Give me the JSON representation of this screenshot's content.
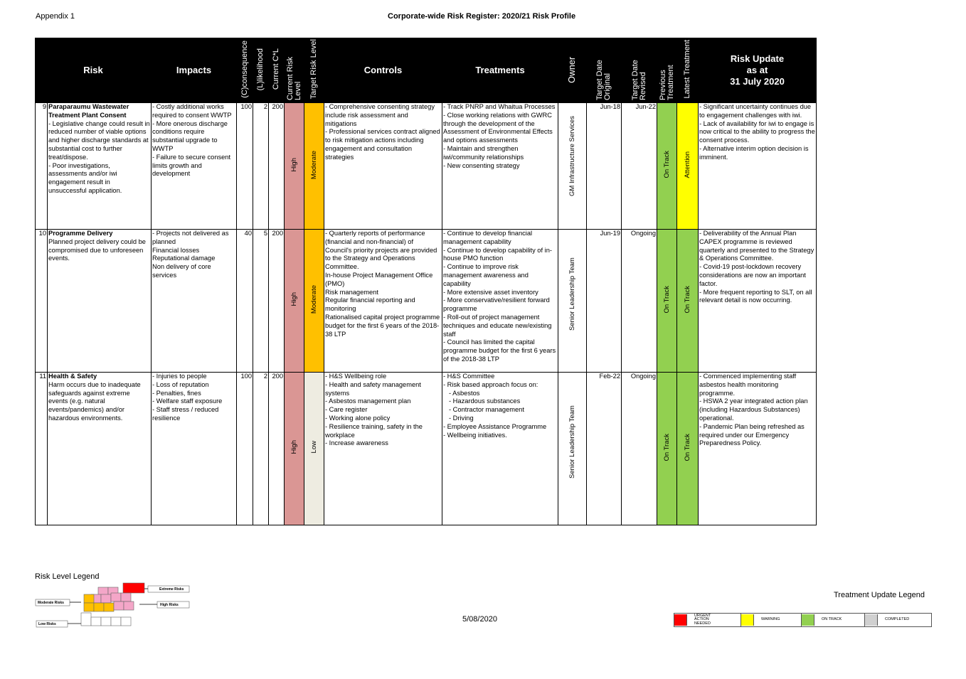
{
  "header": {
    "appendix": "Appendix 1",
    "title": "Corporate-wide Risk Register: 2020/21 Risk Profile"
  },
  "table": {
    "columns": [
      "Risk",
      "Impacts",
      "(C)consequence",
      "(L)likelihood",
      "Current C*L",
      "Current Risk Level",
      "Target Risk Level",
      "Controls",
      "Treatments",
      "Owner",
      "Target Date Original",
      "Target Date Revised",
      "Previous Treatment",
      "Latest Treatment",
      [
        "Risk Update",
        "as at",
        "31 July 2020"
      ]
    ],
    "rows": [
      {
        "number": 9,
        "risk": {
          "title": "Paraparaumu Wastewater Treatment Plant Consent",
          "description": [
            "- Legislative change could result in reduced number of viable options and higher discharge standards at substantial cost to further treat/dispose.",
            "- Poor investigations, assessments and/or iwi engagement result in unsuccessful application."
          ]
        },
        "impacts": [
          "- Costly additional works required to consent WWTP",
          "- More onerous discharge conditions require substantial upgrade to WWTP",
          "- Failure to secure consent limits growth and development"
        ],
        "consequence": 100,
        "likelihood": 2,
        "current_cl": 200,
        "current_risk_level": {
          "label": "High",
          "color": "#da9694"
        },
        "target_risk_level": {
          "label": "Moderate",
          "color": "#ffc000"
        },
        "controls": [
          "- Comprehensive consenting strategy include risk assessment and mitigations",
          "- Professional services contract aligned to risk mitigation actions including engagement and consultation strategies"
        ],
        "treatments": [
          "- Track PNRP and Whaitua Processes",
          "- Close working relations with GWRC through the development of the Assessment of Environmental Effects and options assessments",
          "- Maintain and strengthen iwi/community relationships",
          "- New consenting strategy"
        ],
        "owner": "GM Infrastructure Services",
        "target_date_original": "Jun-18",
        "target_date_revised": "Jun-22",
        "previous_treatment": {
          "label": "On Track",
          "color": "#92d050"
        },
        "latest_treatment": {
          "label": "Attention",
          "color": "#ffff00"
        },
        "risk_update": [
          "- Significant uncertainty continues due to engagement challenges with iwi.",
          "- Lack of availability for iwi to engage is now critical to the ability to progress the consent process.",
          "- Alternative interim option decision is imminent."
        ]
      },
      {
        "number": 10,
        "risk": {
          "title": "Programme Delivery",
          "description": [
            "Planned project delivery could be compromised due to unforeseen events."
          ]
        },
        "impacts": [
          "- Projects not delivered as planned",
          "Financial losses",
          "Reputational damage",
          "Non delivery of core services"
        ],
        "consequence": 40,
        "likelihood": 5,
        "current_cl": 200,
        "current_risk_level": {
          "label": "High",
          "color": "#da9694"
        },
        "target_risk_level": {
          "label": "Moderate",
          "color": "#ffc000"
        },
        "controls": [
          "- Quarterly reports of performance (financial and non-financial) of Council's priority projects are provided to the Strategy and Operations Committee.",
          "In-house Project Management Office (PMO)",
          "Risk management",
          "Regular financial reporting and monitoring",
          "Rationalised capital project programme budget for the first 6 years of the 2018-38 LTP"
        ],
        "treatments": [
          "- Continue to develop financial management capability",
          "- Continue to develop capability of in-house PMO function",
          "- Continue to improve risk management awareness and capability",
          "- More extensive asset inventory",
          "- More conservative/resilient forward programme",
          "- Roll-out of project management techniques and educate new/existing staff",
          "- Council has limited the capital programme budget for the first 6 years of the 2018-38 LTP"
        ],
        "owner": "Senior Leadership Team",
        "target_date_original": "Jun-19",
        "target_date_revised": "Ongoing",
        "previous_treatment": {
          "label": "On Track",
          "color": "#92d050"
        },
        "latest_treatment": {
          "label": "On Track",
          "color": "#92d050"
        },
        "risk_update": [
          "- Deliverability of the Annual Plan CAPEX programme is reviewed quarterly and presented to the Strategy & Operations Committee.",
          "- Covid-19 post-lockdown recovery considerations are now an important factor.",
          "- More frequent reporting to SLT, on all relevant detail is now occurring."
        ]
      },
      {
        "number": 11,
        "risk": {
          "title": "Health & Safety",
          "description": [
            "Harm occurs due to inadequate safeguards against extreme events (e.g. natural events/pandemics) and/or hazardous environments."
          ]
        },
        "impacts": [
          "- Injuries to people",
          "- Loss of reputation",
          "- Penalties, fines",
          "- Welfare staff exposure",
          "- Staff stress / reduced resilience"
        ],
        "consequence": 100,
        "likelihood": 2,
        "current_cl": 200,
        "current_risk_level": {
          "label": "High",
          "color": "#da9694"
        },
        "target_risk_level": {
          "label": "Low",
          "color": "#eeece1"
        },
        "controls": [
          "- H&S Wellbeing role",
          "- Health and safety management systems",
          "- Asbestos management plan",
          "- Care register",
          "- Working alone policy",
          "- Resilience training, safety in the workplace",
          "- Increase awareness"
        ],
        "treatments": [
          "- H&S Committee",
          {
            "text": "- Risk based approach focus on:",
            "items": [
              "- Asbestos",
              "- Hazardous substances",
              "- Contractor management",
              "- Driving"
            ]
          },
          "- Employee Assistance Programme",
          "- Wellbeing initiatives."
        ],
        "owner": "Senior Leadership Team",
        "target_date_original": "Feb-22",
        "target_date_revised": "Ongoing",
        "previous_treatment": {
          "label": "On Track",
          "color": "#92d050"
        },
        "latest_treatment": {
          "label": "On Track",
          "color": "#92d050"
        },
        "risk_update": [
          "- Commenced implementing staff asbestos health monitoring programme.",
          "- HSWA 2 year integrated action plan (including Hazardous Substances) operational.",
          "- Pandemic Plan being refreshed as required under our Emergency Preparedness Policy."
        ]
      }
    ]
  },
  "risk_level_legend": {
    "title": "Risk Level Legend",
    "labels": [
      "Extreme Risks",
      "High Risks",
      "Moderate Risks",
      "Low Risks"
    ]
  },
  "footer_date": "5/08/2020",
  "treatment_update_legend": {
    "title": "Treatment Update Legend",
    "items": [
      {
        "label": "URGENT ACTION NEEDED",
        "color": "#ff0000"
      },
      {
        "label": "WARNING",
        "color": "#ffff00"
      },
      {
        "label": "ON TRACK",
        "color": "#92d050"
      },
      {
        "label": "COMPLETED",
        "color": "#d0d0d0"
      }
    ]
  }
}
